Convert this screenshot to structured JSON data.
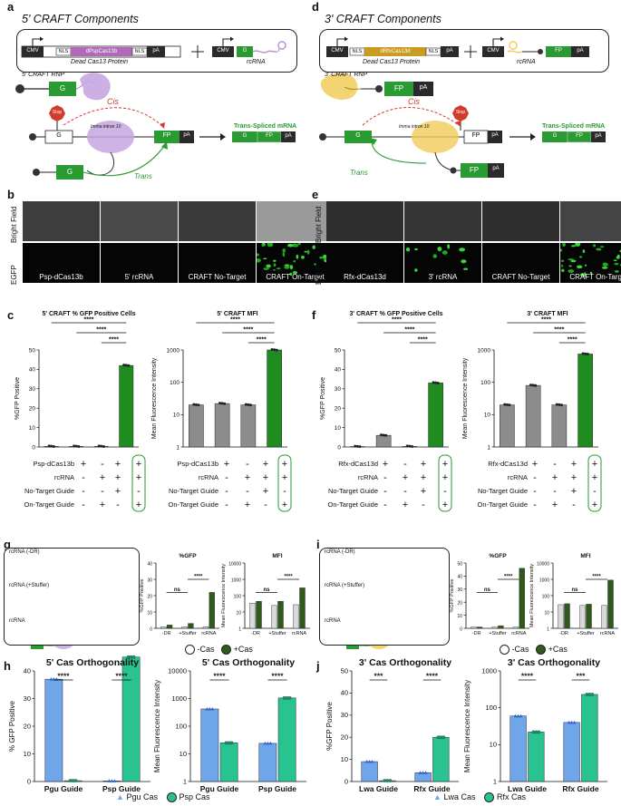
{
  "letters": {
    "a": "a",
    "b": "b",
    "c": "c",
    "d": "d",
    "e": "e",
    "f": "f",
    "g": "g",
    "h": "h",
    "i": "i",
    "j": "j"
  },
  "a": {
    "title": "5' CRAFT Components",
    "cmv": "CMV",
    "nls": "NLS",
    "cas": "dPspCas13b",
    "pa": "pA",
    "g": "G",
    "dead": "Dead Cas13 Protein",
    "rcrna": "rcRNA",
    "rnp": "5' CRAFT RNP",
    "stop": "Stop",
    "cis": "Cis",
    "trans": "Trans",
    "intron": "Imma intron 10",
    "fp": "FP",
    "spliced": "Trans-Spliced mRNA"
  },
  "d": {
    "title": "3' CRAFT Components",
    "cmv": "CMV",
    "nls": "NLS",
    "cas": "dRfxCas13d",
    "pa": "pA",
    "fp": "FP",
    "dead": "Dead Cas13 Protein",
    "rcrna": "rcRNA",
    "rnp": "3' CRAFT RNP",
    "stop": "Stop",
    "cis": "Cis",
    "trans": "Trans",
    "intron": "Imma intron 10",
    "g": "G",
    "spliced": "Trans-Spliced mRNA"
  },
  "b": {
    "row1": "Bright Field",
    "row2": "EGFP",
    "labels": [
      "Psp-dCas13b",
      "5' rcRNA",
      "CRAFT No-Target",
      "CRAFT On-Target"
    ]
  },
  "e": {
    "row1": "Bright Field",
    "row2": "EGFP",
    "labels": [
      "Rfx-dCas13d",
      "3' rcRNA",
      "CRAFT No-Target",
      "CRAFT On-Target"
    ]
  },
  "sig": "****",
  "ns": "ns",
  "c": {
    "left_title": "5' CRAFT % GFP Positive Cells",
    "right_title": "5' CRAFT MFI",
    "left_ylabel": "%GFP Positive",
    "right_ylabel": "Mean Fluorescence Intensity",
    "rows": [
      {
        "label": "Psp-dCas13b",
        "marks": [
          "+",
          "-",
          "+",
          "+"
        ]
      },
      {
        "label": "rcRNA",
        "marks": [
          "-",
          "+",
          "+",
          "+"
        ]
      },
      {
        "label": "No-Target Guide",
        "marks": [
          "-",
          "-",
          "+",
          "-"
        ]
      },
      {
        "label": "On-Target Guide",
        "marks": [
          "-",
          "+",
          "-",
          "+"
        ]
      }
    ]
  },
  "f": {
    "left_title": "3' CRAFT % GFP Positive Cells",
    "right_title": "3' CRAFT MFI",
    "left_ylabel": "%GFP Positive",
    "right_ylabel": "Mean Fluorescence Intensity",
    "rows": [
      {
        "label": "Rfx-dCas13d",
        "marks": [
          "+",
          "-",
          "+",
          "+"
        ]
      },
      {
        "label": "rcRNA",
        "marks": [
          "-",
          "+",
          "+",
          "+"
        ]
      },
      {
        "label": "No-Target Guide",
        "marks": [
          "-",
          "-",
          "+",
          "-"
        ]
      },
      {
        "label": "On-Target Guide",
        "marks": [
          "-",
          "+",
          "-",
          "+"
        ]
      }
    ]
  },
  "g": {
    "schem_labels": [
      "rcRNA (-DR)",
      "rcRNA (+Stuffer)",
      "rcRNA"
    ],
    "left_title": "%GFP",
    "right_title": "MFI",
    "left_ylabel": "%GFP Positive",
    "right_ylabel": "Mean Fluorescence Intensity",
    "xcats": [
      "-DR",
      "+Stuffer",
      "rcRNA"
    ],
    "legend": [
      "-Cas",
      "+Cas"
    ]
  },
  "i": {
    "schem_labels": [
      "rcRNA (-DR)",
      "rcRNA (+Stuffer)",
      "rcRNA"
    ],
    "left_title": "%GFP",
    "right_title": "MFI",
    "left_ylabel": "%GFP Positive",
    "right_ylabel": "Mean Fluorescence Intensity",
    "xcats": [
      "-DR",
      "+Stuffer",
      "rcRNA"
    ],
    "legend": [
      "-Cas",
      "+Cas"
    ]
  },
  "h": {
    "left_title": "5' Cas Orthogonality",
    "right_title": "5' Cas Orthogonality",
    "left_ylabel": "% GFP Positive",
    "right_ylabel": "Mean Fluorescence Intensity",
    "xcats": [
      "Pgu Guide",
      "Psp Guide"
    ],
    "legend": [
      "Pgu Cas",
      "Psp Cas"
    ],
    "sig_left": [
      "****",
      "****"
    ],
    "sig_right": [
      "****",
      "****"
    ]
  },
  "j": {
    "left_title": "3' Cas Orthogonality",
    "right_title": "3' Cas Orthogonality",
    "left_ylabel": "%GFP Positive",
    "right_ylabel": "Mean Fluorescence Intensity",
    "xcats": [
      "Lwa Guide",
      "Rfx Guide"
    ],
    "legend": [
      "Lwa Cas",
      "Rfx Cas"
    ],
    "sig_left": [
      "***",
      "****"
    ],
    "sig_right": [
      "****",
      "***"
    ]
  },
  "colors": {
    "green": "#1f8c1f",
    "darkgreen": "#2f5a1c",
    "grey": "#8c8c8c",
    "blue": "#6fa6ea",
    "teal": "#28c38f",
    "purple": "#b48fd6",
    "yellow": "#f0cc5a",
    "red": "#d23a2a",
    "cas_b": "#b06ab8",
    "cas_d": "#c99b1f"
  },
  "chart_data": [
    {
      "type": "bar",
      "id": "c-left",
      "categories": [
        "1",
        "2",
        "3",
        "4"
      ],
      "values": [
        0.3,
        0.3,
        0.3,
        42
      ],
      "ylim": [
        0,
        50
      ],
      "yticks": [
        0,
        10,
        20,
        30,
        40,
        50
      ]
    },
    {
      "type": "bar",
      "id": "c-right",
      "categories": [
        "1",
        "2",
        "3",
        "4"
      ],
      "values": [
        20,
        22,
        20,
        1000
      ],
      "ylim": [
        1,
        1000
      ],
      "scale": "log"
    },
    {
      "type": "bar",
      "id": "f-left",
      "categories": [
        "1",
        "2",
        "3",
        "4"
      ],
      "values": [
        0.2,
        6,
        0.3,
        33
      ],
      "ylim": [
        0,
        50
      ],
      "yticks": [
        0,
        10,
        20,
        30,
        40,
        50
      ]
    },
    {
      "type": "bar",
      "id": "f-right",
      "categories": [
        "1",
        "2",
        "3",
        "4"
      ],
      "values": [
        20,
        80,
        20,
        750
      ],
      "ylim": [
        1,
        1000
      ],
      "scale": "log"
    },
    {
      "type": "bar",
      "id": "g-left",
      "categories": [
        "-DR",
        "+Stuffer",
        "rcRNA"
      ],
      "series": [
        {
          "name": "-Cas",
          "values": [
            1,
            1,
            1
          ]
        },
        {
          "name": "+Cas",
          "values": [
            2,
            3,
            22
          ]
        }
      ],
      "ylim": [
        0,
        40
      ],
      "yticks": [
        0,
        10,
        20,
        30,
        40
      ]
    },
    {
      "type": "bar",
      "id": "g-right",
      "categories": [
        "-DR",
        "+Stuffer",
        "rcRNA"
      ],
      "series": [
        {
          "name": "-Cas",
          "values": [
            35,
            25,
            28
          ]
        },
        {
          "name": "+Cas",
          "values": [
            45,
            45,
            300
          ]
        }
      ],
      "ylim": [
        1,
        10000
      ],
      "scale": "log"
    },
    {
      "type": "bar",
      "id": "i-left",
      "categories": [
        "-DR",
        "+Stuffer",
        "rcRNA"
      ],
      "series": [
        {
          "name": "-Cas",
          "values": [
            1,
            1,
            1
          ]
        },
        {
          "name": "+Cas",
          "values": [
            1,
            2,
            46
          ]
        }
      ],
      "ylim": [
        0,
        50
      ],
      "yticks": [
        0,
        10,
        20,
        30,
        40,
        50
      ]
    },
    {
      "type": "bar",
      "id": "i-right",
      "categories": [
        "-DR",
        "+Stuffer",
        "rcRNA"
      ],
      "series": [
        {
          "name": "-Cas",
          "values": [
            28,
            25,
            25
          ]
        },
        {
          "name": "+Cas",
          "values": [
            32,
            30,
            900
          ]
        }
      ],
      "ylim": [
        1,
        10000
      ],
      "scale": "log"
    },
    {
      "type": "bar",
      "id": "h-left",
      "categories": [
        "Pgu Guide",
        "Psp Guide"
      ],
      "series": [
        {
          "name": "Pgu Cas",
          "values": [
            37,
            0.2
          ]
        },
        {
          "name": "Psp Cas",
          "values": [
            0.3,
            45
          ]
        }
      ],
      "ylim": [
        0,
        40
      ],
      "yticks": [
        0,
        10,
        20,
        30,
        40
      ]
    },
    {
      "type": "bar",
      "id": "h-right",
      "categories": [
        "Pgu Guide",
        "Psp Guide"
      ],
      "series": [
        {
          "name": "Pgu Cas",
          "values": [
            420,
            24
          ]
        },
        {
          "name": "Psp Cas",
          "values": [
            25,
            1050
          ]
        }
      ],
      "ylim": [
        1,
        10000
      ],
      "scale": "log"
    },
    {
      "type": "bar",
      "id": "j-left",
      "categories": [
        "Lwa Guide",
        "Rfx Guide"
      ],
      "series": [
        {
          "name": "Lwa Cas",
          "values": [
            9,
            4
          ]
        },
        {
          "name": "Rfx Cas",
          "values": [
            0.4,
            20
          ]
        }
      ],
      "ylim": [
        0,
        50
      ],
      "yticks": [
        0,
        10,
        20,
        30,
        40,
        50
      ]
    },
    {
      "type": "bar",
      "id": "j-right",
      "categories": [
        "Lwa Guide",
        "Rfx Guide"
      ],
      "series": [
        {
          "name": "Lwa Cas",
          "values": [
            60,
            40
          ]
        },
        {
          "name": "Rfx Cas",
          "values": [
            22,
            230
          ]
        }
      ],
      "ylim": [
        1,
        1000
      ],
      "scale": "log"
    }
  ]
}
